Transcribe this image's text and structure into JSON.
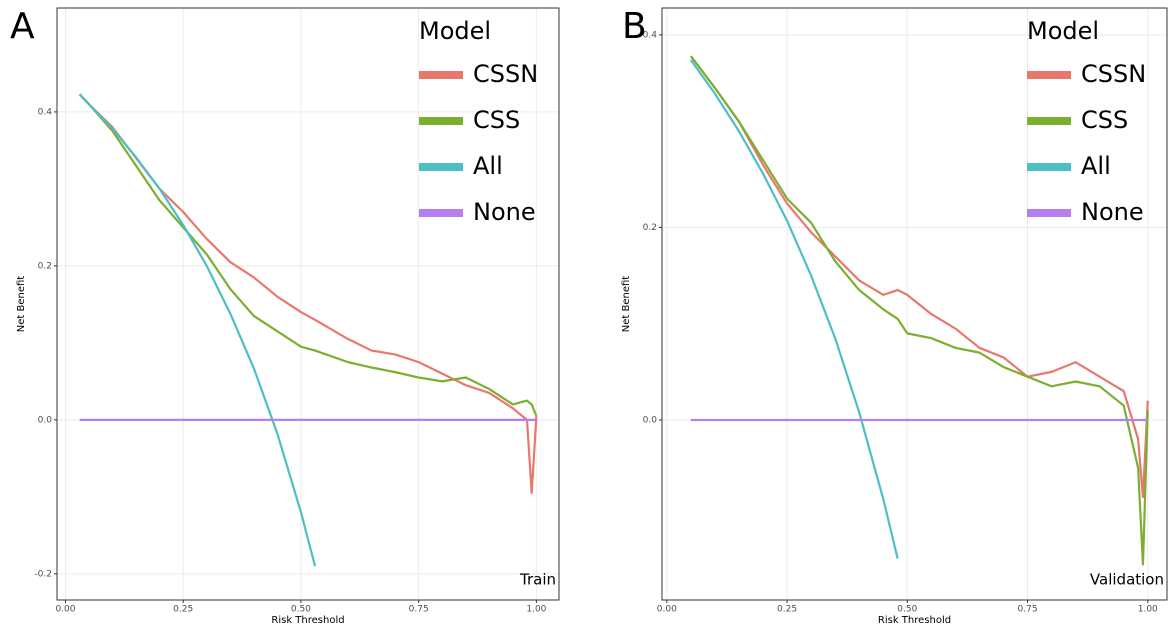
{
  "chart_data": [
    {
      "type": "line",
      "panel_label": "A",
      "annotation": "Train",
      "x_label": "Risk Threshold",
      "y_label": "Net Benefit",
      "legend_title": "Model",
      "legend_position": "top-right",
      "grid": true,
      "x": [
        0.03,
        0.05,
        0.1,
        0.15,
        0.2,
        0.25,
        0.3,
        0.35,
        0.4,
        0.45,
        0.5,
        0.53,
        0.6,
        0.65,
        0.7,
        0.75,
        0.8,
        0.85,
        0.9,
        0.95,
        0.98,
        0.99,
        1.0
      ],
      "xlim": [
        -0.018,
        1.048
      ],
      "ylim": [
        -0.234,
        0.535
      ],
      "xticks": [
        {
          "value": 0,
          "label": "0.00"
        },
        0.25,
        {
          "value": 0.5,
          "label": "0.50"
        },
        0.75,
        {
          "value": 1,
          "label": "1.00"
        }
      ],
      "yticks": [
        -0.2,
        {
          "value": 0,
          "label": "0.0"
        },
        0.2,
        0.4
      ],
      "series": [
        {
          "name": "CSSN",
          "color": "#e8776e",
          "values": [
            0.423,
            0.41,
            0.38,
            0.34,
            0.3,
            0.27,
            0.235,
            0.205,
            0.185,
            0.16,
            0.14,
            0.13,
            0.105,
            0.09,
            0.085,
            0.075,
            0.06,
            0.045,
            0.035,
            0.015,
            0.0,
            -0.095,
            0.005
          ]
        },
        {
          "name": "CSS",
          "color": "#7cae2f",
          "values": [
            0.423,
            0.41,
            0.375,
            0.33,
            0.285,
            0.25,
            0.215,
            0.17,
            0.135,
            0.115,
            0.095,
            0.09,
            0.075,
            0.068,
            0.062,
            0.055,
            0.05,
            0.055,
            0.04,
            0.02,
            0.025,
            0.02,
            0.005
          ]
        },
        {
          "name": "All",
          "color": "#4dbfc4",
          "values": [
            0.423,
            0.41,
            0.378,
            0.341,
            0.3,
            0.253,
            0.2,
            0.138,
            0.067,
            -0.018,
            -0.12,
            -0.19,
            null,
            null,
            null,
            null,
            null,
            null,
            null,
            null,
            null,
            null,
            null
          ]
        },
        {
          "name": "None",
          "color": "#b67ff0",
          "values": [
            0,
            0,
            0,
            0,
            0,
            0,
            0,
            0,
            0,
            0,
            0,
            0,
            0,
            0,
            0,
            0,
            0,
            0,
            0,
            0,
            0,
            0,
            0
          ]
        }
      ]
    },
    {
      "type": "line",
      "panel_label": "B",
      "annotation": "Validation",
      "x_label": "Risk Threshold",
      "y_label": "Net Benefit",
      "legend_title": "Model",
      "legend_position": "top-right",
      "grid": true,
      "x": [
        0.05,
        0.1,
        0.15,
        0.2,
        0.25,
        0.3,
        0.35,
        0.4,
        0.45,
        0.48,
        0.5,
        0.55,
        0.6,
        0.65,
        0.7,
        0.75,
        0.8,
        0.85,
        0.9,
        0.95,
        0.98,
        0.99,
        1.0
      ],
      "xlim": [
        -0.01,
        1.04
      ],
      "ylim": [
        -0.187,
        0.428
      ],
      "xticks": [
        {
          "value": 0,
          "label": "0.00"
        },
        0.25,
        {
          "value": 0.5,
          "label": "0.50"
        },
        0.75,
        {
          "value": 1,
          "label": "1.00"
        }
      ],
      "yticks": [
        {
          "value": 0,
          "label": "0.0"
        },
        0.2,
        0.4
      ],
      "series": [
        {
          "name": "CSSN",
          "color": "#e8776e",
          "values": [
            0.378,
            0.345,
            0.31,
            0.265,
            0.225,
            0.195,
            0.17,
            0.145,
            0.13,
            0.135,
            0.13,
            0.11,
            0.095,
            0.075,
            0.065,
            0.045,
            0.05,
            0.06,
            0.045,
            0.03,
            -0.02,
            -0.08,
            0.02
          ]
        },
        {
          "name": "CSS",
          "color": "#7cae2f",
          "values": [
            0.378,
            0.345,
            0.31,
            0.27,
            0.23,
            0.205,
            0.165,
            0.135,
            0.115,
            0.105,
            0.09,
            0.085,
            0.075,
            0.07,
            0.055,
            0.045,
            0.035,
            0.04,
            0.035,
            0.015,
            -0.05,
            -0.15,
            0.01
          ]
        },
        {
          "name": "All",
          "color": "#4dbfc4",
          "values": [
            0.374,
            0.339,
            0.3,
            0.256,
            0.207,
            0.15,
            0.085,
            0.008,
            -0.082,
            -0.144,
            null,
            null,
            null,
            null,
            null,
            null,
            null,
            null,
            null,
            null,
            null,
            null,
            null
          ]
        },
        {
          "name": "None",
          "color": "#b67ff0",
          "values": [
            0,
            0,
            0,
            0,
            0,
            0,
            0,
            0,
            0,
            0,
            0,
            0,
            0,
            0,
            0,
            0,
            0,
            0,
            0,
            0,
            0,
            0,
            0
          ]
        }
      ]
    }
  ]
}
